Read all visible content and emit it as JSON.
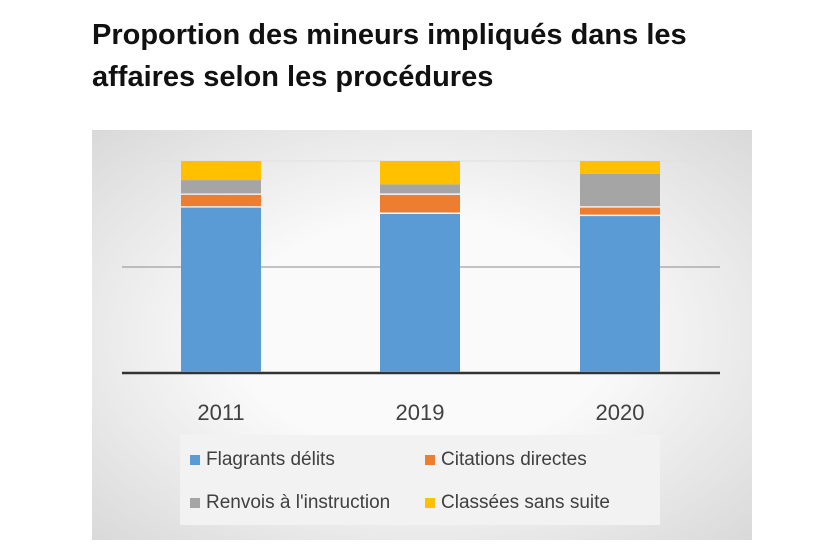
{
  "title": "Proportion des  mineurs impliqués dans les affaires selon les procédures",
  "chart_data": {
    "type": "bar",
    "stacked": true,
    "title": "Proportion des  mineurs impliqués dans les affaires selon les procédures",
    "categories": [
      "2011",
      "2019",
      "2020"
    ],
    "ylim": [
      0,
      100
    ],
    "grid": true,
    "legend_position": "bottom",
    "series": [
      {
        "name": "Flagrants délits",
        "color": "#5b9bd5",
        "values": [
          78,
          75,
          74
        ]
      },
      {
        "name": "Citations directes",
        "color": "#ed7d31",
        "values": [
          6,
          9,
          4
        ]
      },
      {
        "name": "Renvois à l'instruction",
        "color": "#a5a5a5",
        "values": [
          7,
          5,
          16
        ]
      },
      {
        "name": "Classées sans suite",
        "color": "#ffc000",
        "values": [
          9,
          11,
          6
        ]
      }
    ]
  }
}
